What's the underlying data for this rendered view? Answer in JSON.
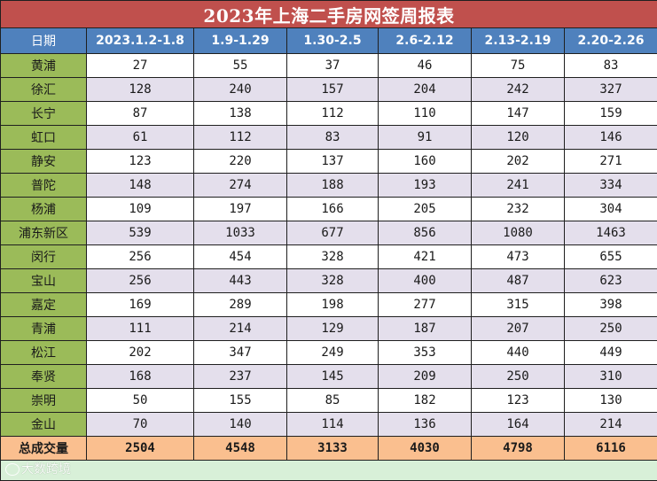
{
  "title": "2023年上海二手房网签周报表",
  "header": {
    "first": "日期",
    "weeks": [
      "2023.1.2-1.8",
      "1.9-1.29",
      "1.30-2.5",
      "2.6-2.12",
      "2.13-2.19",
      "2.20-2.26"
    ]
  },
  "rows": [
    {
      "district": "黄浦",
      "values": [
        "27",
        "55",
        "37",
        "46",
        "75",
        "83"
      ]
    },
    {
      "district": "徐汇",
      "values": [
        "128",
        "240",
        "157",
        "204",
        "242",
        "327"
      ]
    },
    {
      "district": "长宁",
      "values": [
        "87",
        "138",
        "112",
        "110",
        "147",
        "159"
      ]
    },
    {
      "district": "虹口",
      "values": [
        "61",
        "112",
        "83",
        "91",
        "120",
        "146"
      ]
    },
    {
      "district": "静安",
      "values": [
        "123",
        "220",
        "137",
        "160",
        "202",
        "271"
      ]
    },
    {
      "district": "普陀",
      "values": [
        "148",
        "274",
        "188",
        "193",
        "241",
        "334"
      ]
    },
    {
      "district": "杨浦",
      "values": [
        "109",
        "197",
        "166",
        "205",
        "232",
        "304"
      ]
    },
    {
      "district": "浦东新区",
      "values": [
        "539",
        "1033",
        "677",
        "856",
        "1080",
        "1463"
      ]
    },
    {
      "district": "闵行",
      "values": [
        "256",
        "454",
        "328",
        "421",
        "473",
        "655"
      ]
    },
    {
      "district": "宝山",
      "values": [
        "256",
        "443",
        "328",
        "400",
        "487",
        "623"
      ]
    },
    {
      "district": "嘉定",
      "values": [
        "169",
        "289",
        "198",
        "277",
        "315",
        "398"
      ]
    },
    {
      "district": "青浦",
      "values": [
        "111",
        "214",
        "129",
        "187",
        "207",
        "250"
      ]
    },
    {
      "district": "松江",
      "values": [
        "202",
        "347",
        "249",
        "353",
        "440",
        "449"
      ]
    },
    {
      "district": "奉贤",
      "values": [
        "168",
        "237",
        "145",
        "209",
        "250",
        "310"
      ]
    },
    {
      "district": "崇明",
      "values": [
        "50",
        "155",
        "85",
        "182",
        "123",
        "130"
      ]
    },
    {
      "district": "金山",
      "values": [
        "70",
        "140",
        "114",
        "136",
        "164",
        "214"
      ]
    }
  ],
  "total": {
    "label": "总成交量",
    "values": [
      "2504",
      "4548",
      "3133",
      "4030",
      "4798",
      "6116"
    ]
  },
  "watermark": "大数跨境",
  "colors": {
    "title_bg": "#c0504d",
    "header_bg": "#4f81bd",
    "district_bg": "#9bbb59",
    "row_alt_bg": "#e4dfec",
    "total_bg": "#fabf8f",
    "footer_bg": "#d8f0d8"
  }
}
